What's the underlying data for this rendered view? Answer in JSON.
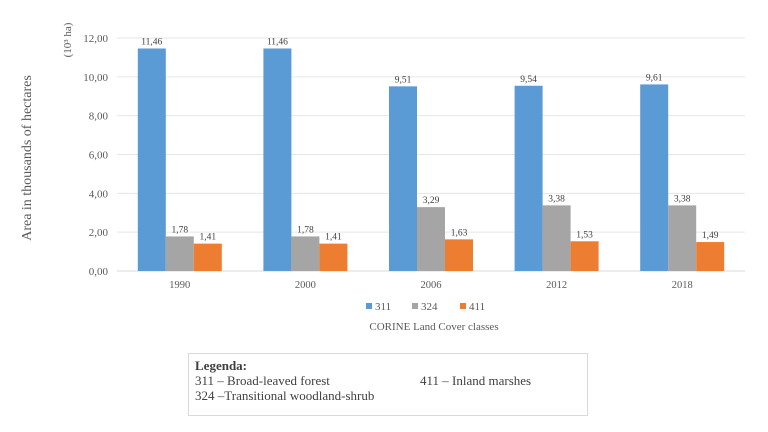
{
  "chart_data": {
    "type": "bar",
    "title": "",
    "xlabel": "CORINE Land Cover classes",
    "ylabel": "Area in thousands of hectares",
    "unit_label": "(10³ ha)",
    "ylim": [
      0,
      12
    ],
    "yticks": [
      "0,00",
      "2,00",
      "4,00",
      "6,00",
      "8,00",
      "10,00",
      "12,00"
    ],
    "ytick_values": [
      0,
      2,
      4,
      6,
      8,
      10,
      12
    ],
    "grid": true,
    "legend_position": "bottom",
    "categories": [
      "1990",
      "2000",
      "2006",
      "2012",
      "2018"
    ],
    "series": [
      {
        "name": "311",
        "color": "#5B9BD5",
        "values": [
          11.46,
          11.46,
          9.51,
          9.54,
          9.61
        ],
        "labels": [
          "11,46",
          "11,46",
          "9,51",
          "9,54",
          "9,61"
        ]
      },
      {
        "name": "324",
        "color": "#A5A5A5",
        "values": [
          1.78,
          1.78,
          3.29,
          3.38,
          3.38
        ],
        "labels": [
          "1,78",
          "1,78",
          "3,29",
          "3,38",
          "3,38"
        ]
      },
      {
        "name": "411",
        "color": "#ED7D31",
        "values": [
          1.41,
          1.41,
          1.63,
          1.53,
          1.49
        ],
        "labels": [
          "1,41",
          "1,41",
          "1,63",
          "1,53",
          "1,49"
        ]
      }
    ]
  },
  "legend_box": {
    "title": "Legenda:",
    "entries": [
      "311 – Broad-leaved forest",
      "411 – Inland marshes",
      "324 –Transitional  woodland-shrub"
    ]
  }
}
